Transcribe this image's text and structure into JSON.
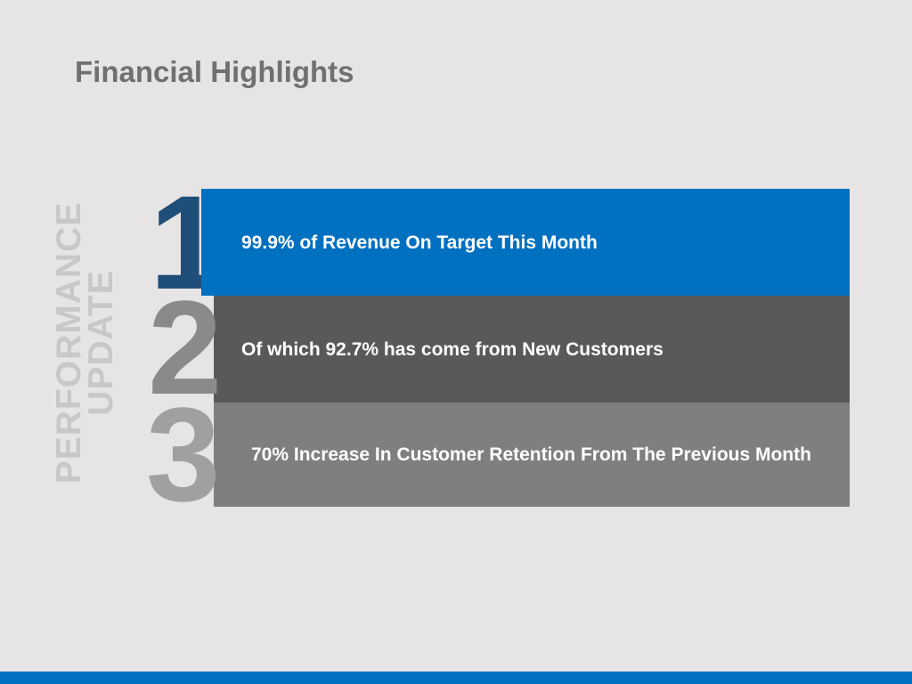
{
  "slide": {
    "title": "Financial Highlights",
    "side_label_line1": "PERFORMANCE",
    "side_label_line2": "UPDATE"
  },
  "items": [
    {
      "number": "1",
      "text": "99.9% of Revenue On Target This Month",
      "color": "#0070c0"
    },
    {
      "number": "2",
      "text": "Of which 92.7% has come from New Customers",
      "color": "#595959"
    },
    {
      "number": "3",
      "text": "70% Increase In Customer Retention From The Previous Month",
      "color": "#7f7f7f"
    }
  ],
  "colors": {
    "background": "#e6e4e5",
    "accent": "#0070c0",
    "title": "#707070"
  }
}
